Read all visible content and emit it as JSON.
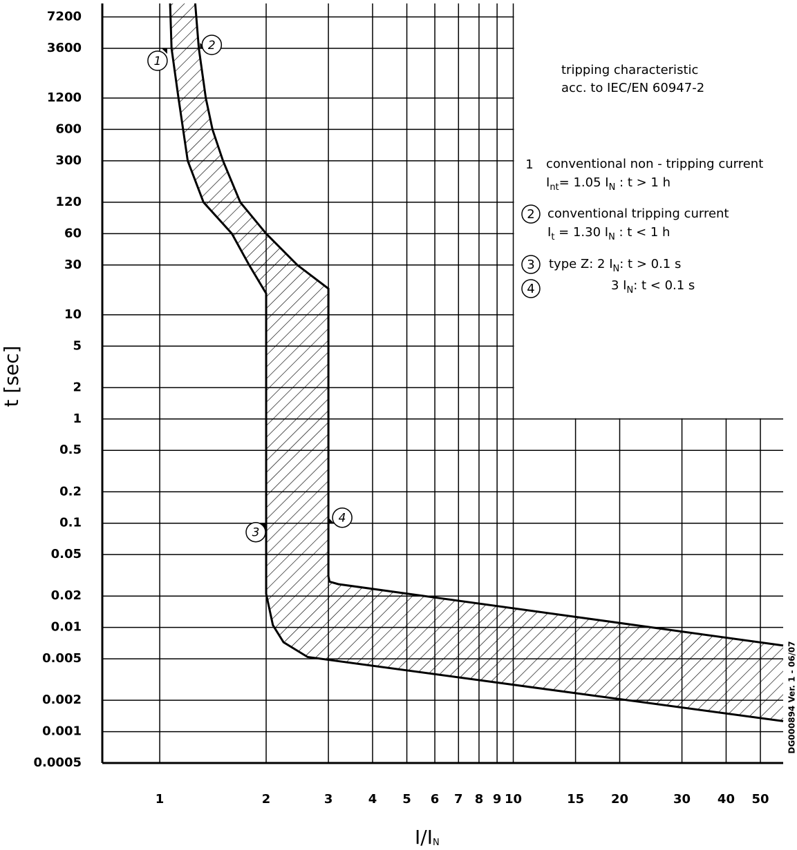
{
  "chart_data": {
    "type": "band",
    "xlabel": [
      "I/I",
      "N"
    ],
    "ylabel": "t [sec]",
    "xscale": "log",
    "yscale": "log",
    "grid": true,
    "color": "#000000",
    "xlim": [
      0.688,
      58
    ],
    "ylim": [
      0.0005,
      9700
    ],
    "xticks": [
      1,
      2,
      3,
      4,
      5,
      6,
      7,
      8,
      9,
      10,
      15,
      20,
      30,
      40,
      50
    ],
    "yticks": [
      7200,
      3600,
      1200,
      600,
      300,
      120,
      60,
      30,
      10,
      5,
      2,
      1,
      0.5,
      0.2,
      0.1,
      0.05,
      0.02,
      0.01,
      0.005,
      0.002,
      0.001,
      0.0005
    ],
    "series": [
      {
        "x": [
          1.07,
          1.08,
          1.13,
          1.2,
          1.33,
          1.6,
          1.79,
          2,
          2,
          2.09,
          2.24,
          2.62,
          58
        ],
        "values": [
          9700,
          3600,
          1200,
          300,
          120,
          60,
          30,
          16,
          0.021,
          0.0105,
          0.0072,
          0.0052,
          0.00126
        ]
      },
      {
        "x": [
          1.26,
          1.29,
          1.35,
          1.41,
          1.51,
          1.69,
          2,
          2.45,
          3,
          3,
          3.02,
          3.2,
          58
        ],
        "values": [
          9700,
          3600,
          1200,
          600,
          300,
          120,
          60,
          30,
          17.8,
          0.031,
          0.0275,
          0.026,
          0.0067
        ]
      }
    ],
    "markers": [
      {
        "label": "1",
        "x": 1.05,
        "y": 3600
      },
      {
        "label": "2",
        "x": 1.3,
        "y": 3600
      },
      {
        "label": "3",
        "x": 2,
        "y": 0.1
      },
      {
        "label": "4",
        "x": 3,
        "y": 0.1
      }
    ],
    "notes": {
      "title": [
        "tripping characteristic",
        "acc. to IEC/EN 60947-2"
      ],
      "items": [
        {
          "number": "1",
          "lines": [
            [
              "conventional non - tripping current"
            ],
            [
              "I",
              "nt",
              "= 1.05 I",
              "N",
              " : t > 1 h"
            ]
          ]
        },
        {
          "number": "2",
          "lines": [
            [
              "conventional tripping current"
            ],
            [
              "I",
              "t",
              " = 1.30 I",
              "N",
              " : t < 1 h"
            ]
          ]
        },
        {
          "number": "3",
          "lines": [
            [
              "type Z:  2 I",
              "N",
              ": t > 0.1 s"
            ]
          ]
        },
        {
          "number": "4",
          "lines": [
            [
              "3 I",
              "N",
              ": t < 0.1 s"
            ]
          ]
        }
      ]
    },
    "credit": "DG000894 Ver. 1 - 06/07"
  }
}
